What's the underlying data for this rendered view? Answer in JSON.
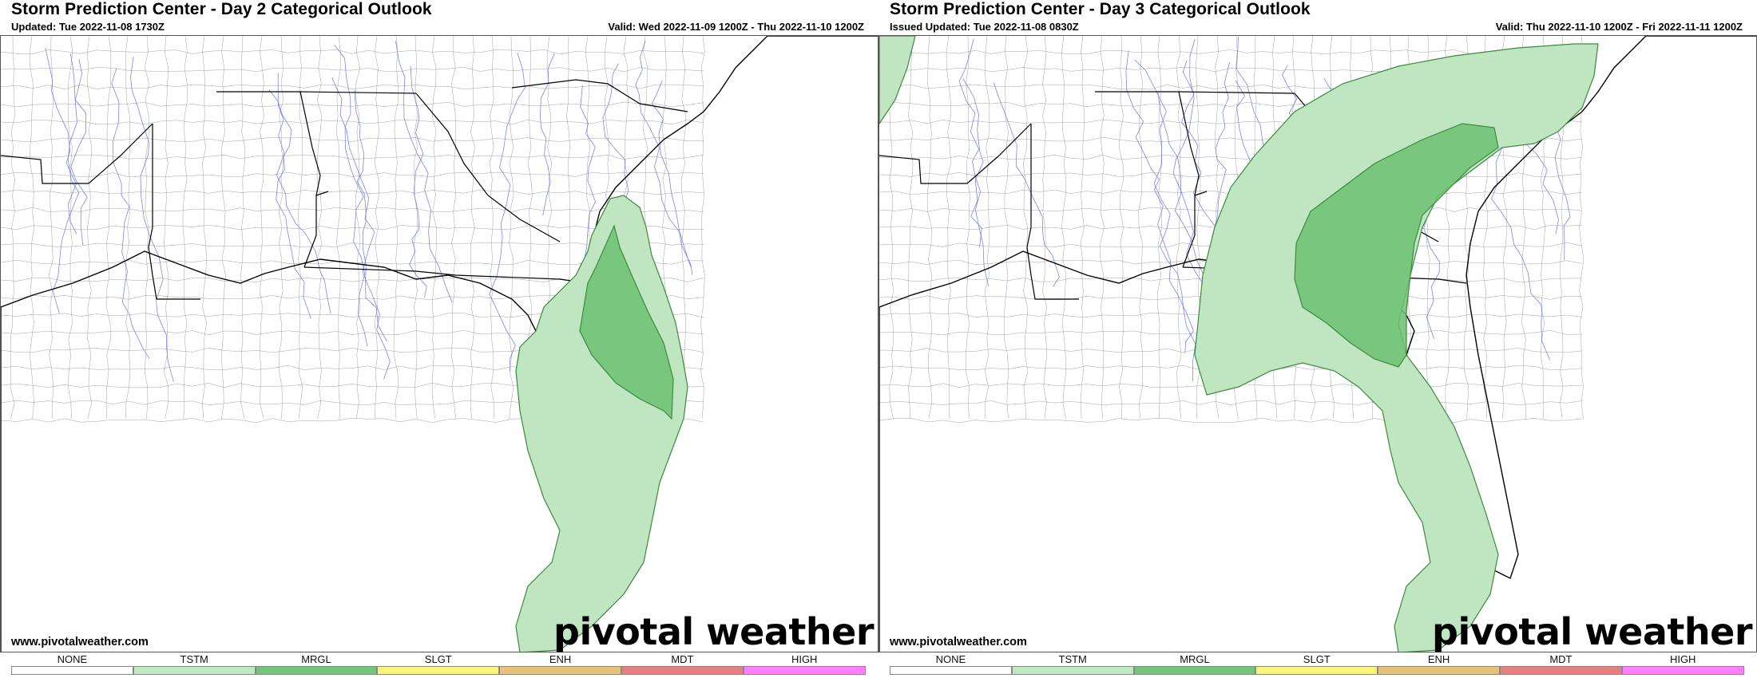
{
  "panels": [
    {
      "title": "Storm Prediction Center - Day 2 Categorical Outlook",
      "subtitle": "Updated: Tue 2022-11-08 1730Z",
      "valid": "Valid: Wed 2022-11-09 1200Z - Thu 2022-11-10 1200Z",
      "website": "www.pivotalweather.com",
      "brand": "pivotal weather",
      "risk_areas_shown": [
        "TSTM",
        "MRGL"
      ]
    },
    {
      "title": "Storm Prediction Center - Day 3 Categorical Outlook",
      "subtitle": "Issued Updated: Tue 2022-11-08 0830Z",
      "valid": "Valid: Thu 2022-11-10 1200Z - Fri 2022-11-11 1200Z",
      "website": "www.pivotalweather.com",
      "brand": "pivotal weather",
      "risk_areas_shown": [
        "TSTM",
        "MRGL"
      ]
    }
  ],
  "legend": [
    {
      "label": "NONE",
      "color": "#ffffff"
    },
    {
      "label": "TSTM",
      "color": "#c1e9c1"
    },
    {
      "label": "MRGL",
      "color": "#76c47c"
    },
    {
      "label": "SLGT",
      "color": "#f6f67f"
    },
    {
      "label": "ENH",
      "color": "#e6c27c"
    },
    {
      "label": "MDT",
      "color": "#e67f7f"
    },
    {
      "label": "HIGH",
      "color": "#ff7fff"
    }
  ],
  "colors": {
    "tstm_fill": "#bfe6c0",
    "tstm_stroke": "#3d8a3f",
    "mrgl_fill": "#6cbf73",
    "state_line": "#000000",
    "county_line": "#8a8a8a",
    "river_line": "#6a78e8"
  }
}
